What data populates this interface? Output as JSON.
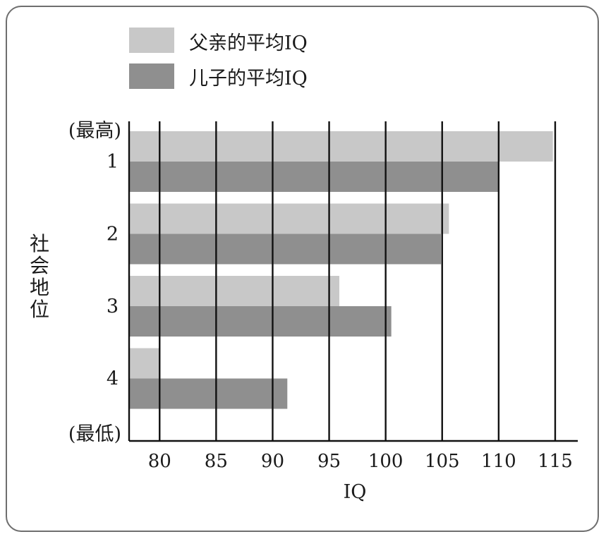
{
  "chart_data": {
    "type": "bar",
    "orientation": "horizontal",
    "categories": [
      "1",
      "2",
      "3",
      "4"
    ],
    "series": [
      {
        "name": "父亲的平均IQ",
        "color": "#c8c8c8",
        "values": [
          114.8,
          105.6,
          95.9,
          80
        ]
      },
      {
        "name": "儿子的平均IQ",
        "color": "#8f8f8f",
        "values": [
          110,
          104.9,
          100.5,
          91.3
        ]
      }
    ],
    "xlabel": "IQ",
    "ylabel": "社会地位",
    "xlim": [
      77.3,
      117
    ],
    "xticks": [
      "80",
      "85",
      "90",
      "95",
      "100",
      "105",
      "110",
      "115"
    ],
    "y_top_annotation": "(最高)",
    "y_bottom_annotation": "(最低)",
    "legend_position": "top-left",
    "grid": "vertical lines at x ticks"
  }
}
